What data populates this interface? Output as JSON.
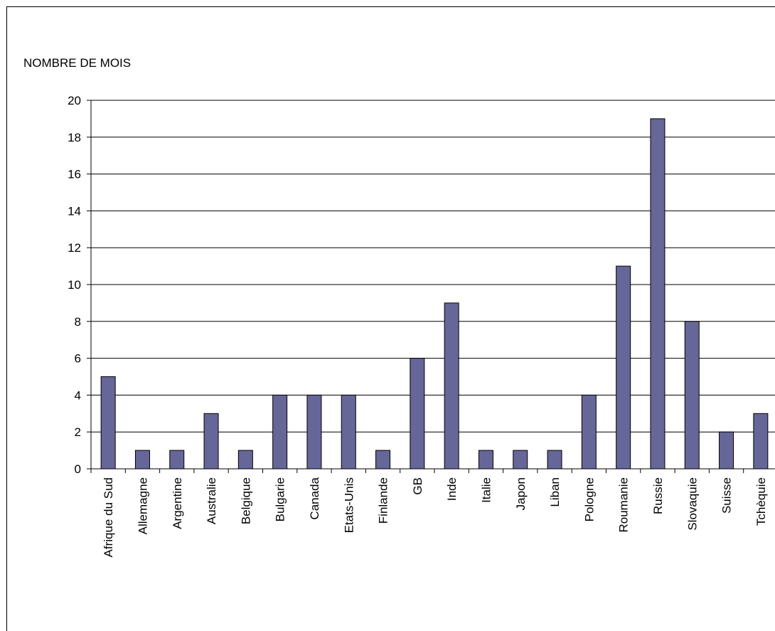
{
  "chart_data": {
    "type": "bar",
    "title": "",
    "xlabel": "",
    "ylabel": "NOMBRE DE MOIS",
    "ylim": [
      0,
      20
    ],
    "yticks": [
      0,
      2,
      4,
      6,
      8,
      10,
      12,
      14,
      16,
      18,
      20
    ],
    "grid": true,
    "legend": "none",
    "bar_color": "#666699",
    "categories": [
      "Afrique du Sud",
      "Allemagne",
      "Argentine",
      "Australie",
      "Belgique",
      "Bulgarie",
      "Canada",
      "Etats-Unis",
      "Finlande",
      "GB",
      "Inde",
      "Italie",
      "Japon",
      "Liban",
      "Pologne",
      "Roumanie",
      "Russie",
      "Slovaquie",
      "Suisse",
      "Tchèquie"
    ],
    "values": [
      5,
      1,
      1,
      3,
      1,
      4,
      4,
      4,
      1,
      6,
      9,
      1,
      1,
      1,
      4,
      11,
      19,
      8,
      2,
      3
    ]
  }
}
